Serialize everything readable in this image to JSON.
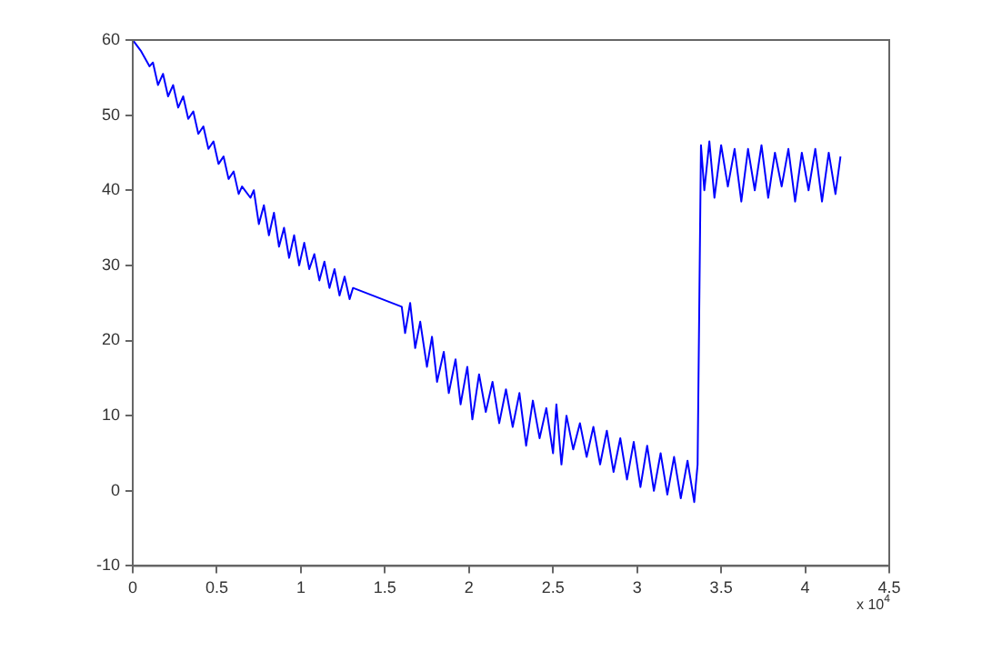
{
  "chart_data": {
    "type": "line",
    "xlim": [
      0,
      4.5
    ],
    "ylim": [
      -10,
      60
    ],
    "xticks": [
      0,
      0.5,
      1,
      1.5,
      2,
      2.5,
      3,
      3.5,
      4,
      4.5
    ],
    "yticks": [
      -10,
      0,
      10,
      20,
      30,
      40,
      50,
      60
    ],
    "grid": false,
    "legend": false,
    "marker": "none",
    "line_style": "solid",
    "annotations": [
      "x 10$^{4}$"
    ],
    "series": [
      {
        "color": "#0000ff",
        "x": [
          0,
          0.05,
          0.1,
          0.12,
          0.15,
          0.18,
          0.21,
          0.24,
          0.27,
          0.3,
          0.33,
          0.36,
          0.39,
          0.42,
          0.45,
          0.48,
          0.51,
          0.54,
          0.57,
          0.6,
          0.63,
          0.65,
          0.7,
          0.72,
          0.75,
          0.78,
          0.81,
          0.84,
          0.87,
          0.9,
          0.93,
          0.96,
          0.99,
          1.02,
          1.05,
          1.08,
          1.11,
          1.14,
          1.17,
          1.2,
          1.23,
          1.26,
          1.29,
          1.31,
          1.6,
          1.62,
          1.65,
          1.68,
          1.71,
          1.75,
          1.78,
          1.81,
          1.85,
          1.88,
          1.92,
          1.95,
          1.99,
          2.02,
          2.06,
          2.1,
          2.14,
          2.18,
          2.22,
          2.26,
          2.3,
          2.34,
          2.38,
          2.42,
          2.46,
          2.5,
          2.52,
          2.55,
          2.58,
          2.62,
          2.66,
          2.7,
          2.74,
          2.78,
          2.82,
          2.86,
          2.9,
          2.94,
          2.98,
          3.02,
          3.06,
          3.1,
          3.14,
          3.18,
          3.22,
          3.26,
          3.3,
          3.34,
          3.36,
          3.38,
          3.4,
          3.43,
          3.46,
          3.5,
          3.54,
          3.58,
          3.62,
          3.66,
          3.7,
          3.74,
          3.78,
          3.82,
          3.86,
          3.9,
          3.94,
          3.98,
          4.02,
          4.06,
          4.1,
          4.14,
          4.18,
          4.21
        ],
        "values": [
          60,
          58.5,
          56.5,
          57,
          54,
          55.5,
          52.5,
          54,
          51,
          52.5,
          49.5,
          50.5,
          47.5,
          48.5,
          45.5,
          46.5,
          43.5,
          44.5,
          41.5,
          42.5,
          39.5,
          40.5,
          39,
          40,
          35.5,
          38,
          34,
          37,
          32.5,
          35,
          31,
          34,
          30,
          33,
          29.5,
          31.5,
          28,
          30.5,
          27,
          29.5,
          26,
          28.5,
          25.5,
          27,
          24.5,
          21,
          25,
          19,
          22.5,
          16.5,
          20.5,
          14.5,
          18.5,
          13,
          17.5,
          11.5,
          16.5,
          9.5,
          15.5,
          10.5,
          14.5,
          9,
          13.5,
          8.5,
          13,
          6,
          12,
          7,
          11,
          5,
          11.5,
          3.5,
          10,
          5.5,
          9,
          4.5,
          8.5,
          3.5,
          8,
          2.5,
          7,
          1.5,
          6.5,
          0.5,
          6,
          0,
          5,
          -0.5,
          4.5,
          -1,
          4,
          -1.5,
          3.5,
          46,
          40,
          46.5,
          39,
          46,
          40.5,
          45.5,
          38.5,
          45.5,
          40,
          46,
          39,
          45,
          40.5,
          45.5,
          38.5,
          45,
          40,
          45.5,
          38.5,
          45,
          39.5,
          44.5
        ]
      }
    ]
  }
}
